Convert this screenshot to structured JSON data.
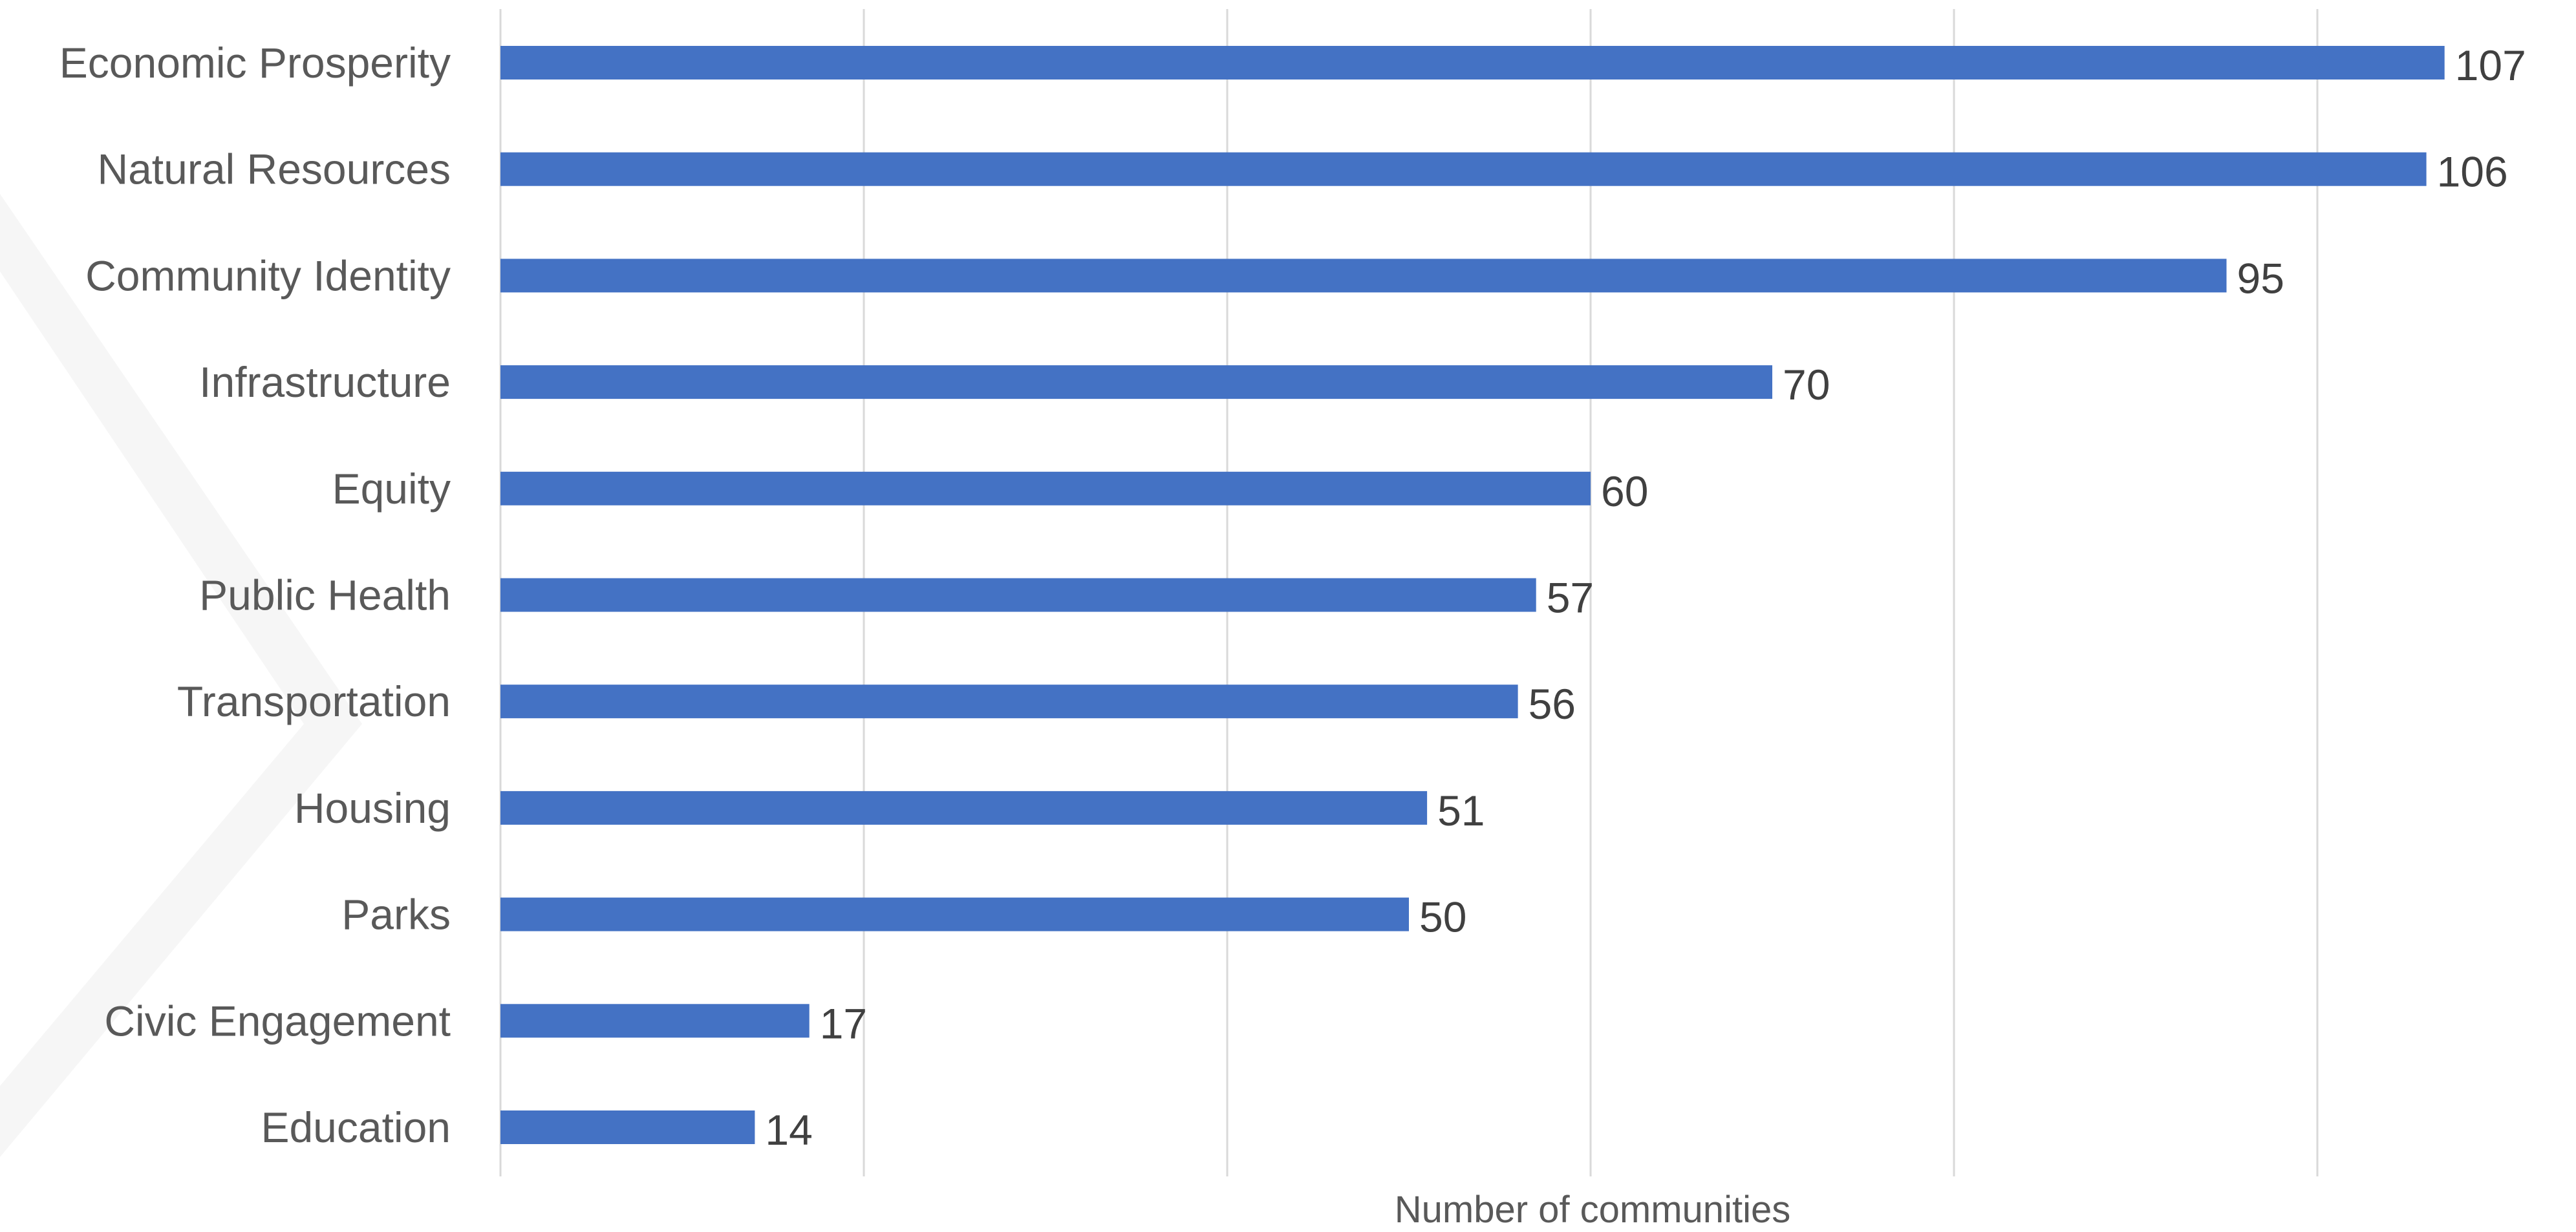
{
  "chart_data": {
    "type": "bar",
    "orientation": "horizontal",
    "categories": [
      "Economic Prosperity",
      "Natural Resources",
      "Community Identity",
      "Infrastructure",
      "Equity",
      "Public Health",
      "Transportation",
      "Housing",
      "Parks",
      "Civic Engagement",
      "Education"
    ],
    "values": [
      107,
      106,
      95,
      70,
      60,
      57,
      56,
      51,
      50,
      17,
      14
    ],
    "title": "",
    "xlabel": "Number of communities",
    "ylabel": "",
    "xlim": [
      0,
      110
    ],
    "grid": true,
    "data_labels": true,
    "legend": "none"
  },
  "colors": {
    "bar": "#4472C4",
    "gridline": "#D9D9D9",
    "category_label": "#595959",
    "value_label": "#404040",
    "axis_title": "#595959"
  }
}
